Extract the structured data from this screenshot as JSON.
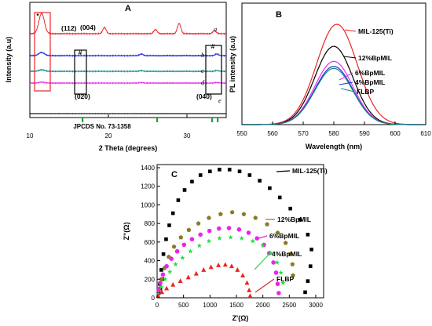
{
  "panels": {
    "A": {
      "label": "A",
      "xlabel": "2 Theta (degrees)",
      "ylabel": "Intensity (a.u)",
      "xlim": [
        10,
        35
      ],
      "xticks": [
        "10",
        "20",
        "30"
      ],
      "curve_labels": [
        "a",
        "b",
        "c",
        "d",
        "e"
      ],
      "annotations": [
        "(112)",
        "(004)",
        "(020)",
        "(040)",
        "#",
        "#",
        "*"
      ],
      "reference_label": "JPCDS No. 73-1358",
      "reference_positions": [
        16.7,
        26.2,
        33.2,
        33.9
      ],
      "colors": {
        "a": "#e8262a",
        "b": "#1f2fd8",
        "c": "#138a7e",
        "d": "#e030e8",
        "e": "#000000",
        "ref": "#19a24a"
      }
    },
    "B": {
      "label": "B",
      "xlabel": "Wavelength (nm)",
      "ylabel": "PL intensity (a.u)",
      "xlim": [
        550,
        610
      ],
      "xticks": [
        "550",
        "560",
        "570",
        "580",
        "590",
        "600",
        "610"
      ],
      "legend": [
        "MIL-125(Ti)",
        "12%BpMIL",
        "6%BpMIL",
        "4%BpMIL",
        "FLBP"
      ]
    },
    "C": {
      "label": "C",
      "xlabel": "Z'(Ω)",
      "ylabel": "Z\"(Ω)",
      "xticks": [
        "0",
        "500",
        "1000",
        "1500",
        "2000",
        "2500",
        "3000"
      ],
      "yticks": [
        "0",
        "200",
        "400",
        "600",
        "800",
        "1000",
        "1200",
        "1400"
      ],
      "legend": [
        "MIL-125(Ti)",
        "12%BpMIL",
        "6%BpMIL",
        "4%BpMIL",
        "FLBP"
      ]
    }
  },
  "chart_data": [
    {
      "type": "line",
      "title": "A",
      "xlabel": "2 Theta (degrees)",
      "ylabel": "Intensity (a.u)",
      "xlim": [
        10,
        35
      ],
      "series": [
        {
          "name": "a",
          "peaks": [
            [
              11.5,
              1.0
            ],
            [
              19.5,
              0.3
            ],
            [
              26.0,
              0.2
            ],
            [
              29.0,
              0.5
            ],
            [
              33.5,
              0.15
            ]
          ]
        },
        {
          "name": "b",
          "peaks": [
            [
              11.5,
              0.3
            ],
            [
              24.2,
              0.15
            ],
            [
              33.8,
              0.15
            ]
          ]
        },
        {
          "name": "c",
          "peaks": [
            [
              11.5,
              0.2
            ],
            [
              24.2,
              0.1
            ],
            [
              33.8,
              0.1
            ]
          ]
        },
        {
          "name": "d",
          "peaks": [
            [
              11.5,
              0.15
            ],
            [
              24.2,
              0.08
            ],
            [
              33.8,
              0.08
            ]
          ]
        },
        {
          "name": "e",
          "peaks": []
        }
      ]
    },
    {
      "type": "line",
      "title": "B",
      "xlabel": "Wavelength (nm)",
      "ylabel": "PL intensity (a.u)",
      "xlim": [
        550,
        610
      ],
      "series": [
        {
          "name": "MIL-125(Ti)",
          "center": 581,
          "peak": 1.0,
          "color": "#e8262a"
        },
        {
          "name": "12%BpMIL",
          "center": 580,
          "peak": 0.78,
          "color": "#000000"
        },
        {
          "name": "6%BpMIL",
          "center": 580,
          "peak": 0.63,
          "color": "#e030e8"
        },
        {
          "name": "4%BpMIL",
          "center": 580,
          "peak": 0.58,
          "color": "#1f2fd8"
        },
        {
          "name": "FLBP",
          "center": 580,
          "peak": 0.56,
          "color": "#138a7e"
        }
      ]
    },
    {
      "type": "scatter",
      "title": "C",
      "xlabel": "Z'(Ω)",
      "ylabel": "Z\"(Ω)",
      "xlim": [
        0,
        3000
      ],
      "ylim": [
        0,
        1400
      ],
      "series": [
        {
          "name": "MIL-125(Ti)",
          "color": "#000000",
          "marker": "square",
          "points": [
            [
              50,
              150
            ],
            [
              80,
              300
            ],
            [
              120,
              470
            ],
            [
              170,
              630
            ],
            [
              230,
              780
            ],
            [
              300,
              910
            ],
            [
              400,
              1050
            ],
            [
              520,
              1160
            ],
            [
              660,
              1250
            ],
            [
              820,
              1320
            ],
            [
              1000,
              1360
            ],
            [
              1180,
              1380
            ],
            [
              1370,
              1380
            ],
            [
              1560,
              1360
            ],
            [
              1750,
              1320
            ],
            [
              1940,
              1260
            ],
            [
              2130,
              1180
            ],
            [
              2320,
              1080
            ],
            [
              2520,
              960
            ],
            [
              2700,
              840
            ],
            [
              2850,
              680
            ],
            [
              2920,
              520
            ],
            [
              2900,
              340
            ],
            [
              2850,
              180
            ],
            [
              2800,
              60
            ],
            [
              30,
              50
            ],
            [
              60,
              100
            ],
            [
              100,
              200
            ]
          ]
        },
        {
          "name": "12%BpMIL",
          "color": "#8a7a20",
          "marker": "pentagon",
          "points": [
            [
              40,
              100
            ],
            [
              80,
              200
            ],
            [
              140,
              320
            ],
            [
              220,
              440
            ],
            [
              320,
              550
            ],
            [
              450,
              650
            ],
            [
              600,
              730
            ],
            [
              780,
              800
            ],
            [
              980,
              860
            ],
            [
              1200,
              900
            ],
            [
              1420,
              920
            ],
            [
              1640,
              900
            ],
            [
              1860,
              860
            ],
            [
              2080,
              790
            ],
            [
              2280,
              700
            ],
            [
              2430,
              590
            ],
            [
              2520,
              470
            ],
            [
              2560,
              360
            ],
            [
              2570,
              240
            ]
          ]
        },
        {
          "name": "6%BpMIL",
          "color": "#f020f0",
          "marker": "circle",
          "points": [
            [
              30,
              80
            ],
            [
              60,
              160
            ],
            [
              110,
              250
            ],
            [
              180,
              340
            ],
            [
              270,
              420
            ],
            [
              380,
              500
            ],
            [
              510,
              570
            ],
            [
              660,
              630
            ],
            [
              820,
              680
            ],
            [
              990,
              720
            ],
            [
              1170,
              745
            ],
            [
              1360,
              750
            ],
            [
              1550,
              735
            ],
            [
              1730,
              700
            ],
            [
              1890,
              640
            ],
            [
              2020,
              570
            ],
            [
              2120,
              480
            ],
            [
              2200,
              380
            ],
            [
              2250,
              270
            ],
            [
              2280,
              150
            ],
            [
              2300,
              50
            ]
          ]
        },
        {
          "name": "4%BpMIL",
          "color": "#20e040",
          "marker": "star",
          "points": [
            [
              20,
              40
            ],
            [
              80,
              120
            ],
            [
              150,
              200
            ],
            [
              240,
              280
            ],
            [
              350,
              360
            ],
            [
              480,
              430
            ],
            [
              630,
              500
            ],
            [
              800,
              560
            ],
            [
              980,
              610
            ],
            [
              1180,
              640
            ],
            [
              1390,
              650
            ],
            [
              1600,
              640
            ],
            [
              1810,
              610
            ],
            [
              2000,
              560
            ],
            [
              2150,
              480
            ],
            [
              2270,
              380
            ],
            [
              2340,
              270
            ],
            [
              2380,
              160
            ]
          ]
        },
        {
          "name": "FLBP",
          "color": "#e8261e",
          "marker": "triangle",
          "points": [
            [
              20,
              20
            ],
            [
              90,
              60
            ],
            [
              180,
              100
            ],
            [
              300,
              140
            ],
            [
              440,
              180
            ],
            [
              590,
              220
            ],
            [
              740,
              260
            ],
            [
              880,
              300
            ],
            [
              1020,
              330
            ],
            [
              1160,
              350
            ],
            [
              1290,
              355
            ],
            [
              1410,
              340
            ],
            [
              1520,
              300
            ],
            [
              1620,
              240
            ],
            [
              1700,
              160
            ],
            [
              1740,
              80
            ],
            [
              1760,
              20
            ]
          ]
        }
      ]
    }
  ]
}
